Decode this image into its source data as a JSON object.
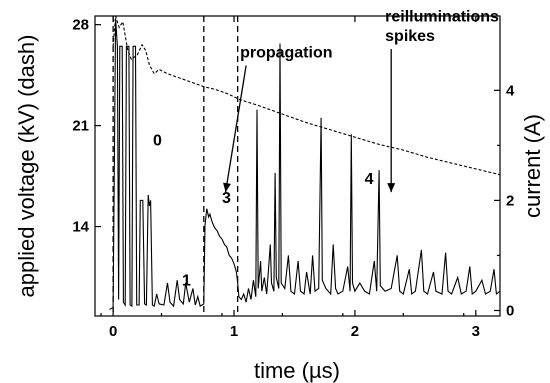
{
  "chart_data": {
    "type": "line",
    "xlabel": "time (µs)",
    "ylabel_left": "applied voltage (kV) (dash)",
    "ylabel_right": "current (A)",
    "xlim": [
      -0.15,
      3.2
    ],
    "ylim_left": [
      7.8,
      28.6
    ],
    "ylim_right": [
      -0.1,
      5.35
    ],
    "x_ticks": [
      0,
      1,
      2,
      3
    ],
    "y_left_ticks": [
      14,
      21,
      28
    ],
    "y_right_ticks": [
      0,
      2,
      4
    ],
    "grid": false,
    "markers": [
      {
        "name": "start",
        "x": 0.0
      },
      {
        "name": "left-boundary",
        "x": 0.75
      },
      {
        "name": "right-boundary",
        "x": 1.03
      }
    ],
    "annotations": [
      {
        "text": "0",
        "x": 0.33,
        "y_current": 3.0
      },
      {
        "text": "1",
        "x": 0.57,
        "y_current": 0.45
      },
      {
        "text": "3",
        "x": 0.9,
        "y_current": 1.95
      },
      {
        "text": "4",
        "x": 2.08,
        "y_current": 2.3
      },
      {
        "text": "propagation",
        "x": 1.05,
        "y_current": 4.6
      },
      {
        "text": "reilluminations",
        "x": 2.25,
        "y_current": 5.25
      },
      {
        "text": "spikes",
        "x": 2.25,
        "y_current": 4.9
      }
    ],
    "arrows": [
      {
        "from": [
          1.1,
          4.45
        ],
        "to": [
          0.93,
          2.15
        ]
      },
      {
        "from": [
          2.3,
          4.75
        ],
        "to": [
          2.3,
          2.15
        ]
      }
    ],
    "series": [
      {
        "axis": "left",
        "style": "dash",
        "points": [
          [
            0.0,
            26.5
          ],
          [
            0.02,
            28.8
          ],
          [
            0.05,
            27.8
          ],
          [
            0.08,
            28.2
          ],
          [
            0.12,
            26.3
          ],
          [
            0.15,
            25.6
          ],
          [
            0.2,
            25.9
          ],
          [
            0.24,
            26.6
          ],
          [
            0.27,
            26.2
          ],
          [
            0.3,
            25.2
          ],
          [
            0.34,
            24.6
          ],
          [
            0.38,
            24.9
          ],
          [
            0.45,
            24.6
          ],
          [
            0.55,
            24.3
          ],
          [
            0.65,
            24.0
          ],
          [
            0.75,
            23.7
          ],
          [
            0.85,
            23.5
          ],
          [
            0.95,
            23.2
          ],
          [
            1.05,
            22.8
          ],
          [
            1.2,
            22.4
          ],
          [
            1.4,
            21.8
          ],
          [
            1.6,
            21.2
          ],
          [
            1.8,
            20.7
          ],
          [
            2.0,
            20.2
          ],
          [
            2.2,
            19.7
          ],
          [
            2.4,
            19.3
          ],
          [
            2.6,
            18.8
          ],
          [
            2.8,
            18.4
          ],
          [
            3.0,
            18.0
          ],
          [
            3.2,
            17.6
          ]
        ]
      },
      {
        "axis": "right",
        "style": "solid",
        "points": [
          [
            -0.03,
            0.02
          ],
          [
            0.0,
            0.05
          ],
          [
            0.02,
            5.3
          ],
          [
            0.035,
            4.8
          ],
          [
            0.045,
            0.2
          ],
          [
            0.055,
            4.8
          ],
          [
            0.075,
            4.8
          ],
          [
            0.085,
            0.15
          ],
          [
            0.1,
            0.1
          ],
          [
            0.11,
            4.8
          ],
          [
            0.13,
            4.8
          ],
          [
            0.14,
            0.1
          ],
          [
            0.155,
            0.08
          ],
          [
            0.165,
            4.8
          ],
          [
            0.185,
            4.8
          ],
          [
            0.195,
            0.1
          ],
          [
            0.215,
            0.1
          ],
          [
            0.225,
            2.0
          ],
          [
            0.245,
            2.0
          ],
          [
            0.26,
            0.12
          ],
          [
            0.275,
            0.1
          ],
          [
            0.29,
            2.1
          ],
          [
            0.3,
            1.9
          ],
          [
            0.31,
            2.0
          ],
          [
            0.325,
            0.1
          ],
          [
            0.34,
            0.08
          ],
          [
            0.36,
            0.3
          ],
          [
            0.38,
            0.12
          ],
          [
            0.42,
            0.1
          ],
          [
            0.45,
            0.5
          ],
          [
            0.47,
            0.15
          ],
          [
            0.5,
            0.08
          ],
          [
            0.53,
            0.55
          ],
          [
            0.55,
            0.2
          ],
          [
            0.58,
            0.12
          ],
          [
            0.6,
            0.5
          ],
          [
            0.63,
            0.15
          ],
          [
            0.66,
            0.4
          ],
          [
            0.68,
            0.1
          ],
          [
            0.7,
            0.25
          ],
          [
            0.72,
            0.08
          ],
          [
            0.75,
            0.12
          ],
          [
            0.76,
            1.55
          ],
          [
            0.775,
            1.85
          ],
          [
            0.79,
            1.7
          ],
          [
            0.8,
            1.75
          ],
          [
            0.82,
            1.6
          ],
          [
            0.84,
            1.5
          ],
          [
            0.86,
            1.45
          ],
          [
            0.88,
            1.35
          ],
          [
            0.9,
            1.3
          ],
          [
            0.92,
            1.2
          ],
          [
            0.94,
            1.15
          ],
          [
            0.96,
            1.0
          ],
          [
            0.98,
            0.95
          ],
          [
            1.0,
            0.85
          ],
          [
            1.02,
            0.7
          ],
          [
            1.03,
            0.5
          ],
          [
            1.04,
            0.25
          ],
          [
            1.06,
            0.2
          ],
          [
            1.08,
            0.3
          ],
          [
            1.1,
            0.15
          ],
          [
            1.12,
            0.4
          ],
          [
            1.14,
            0.2
          ],
          [
            1.16,
            0.55
          ],
          [
            1.18,
            0.25
          ],
          [
            1.19,
            3.65
          ],
          [
            1.2,
            0.4
          ],
          [
            1.22,
            0.9
          ],
          [
            1.23,
            0.35
          ],
          [
            1.25,
            0.6
          ],
          [
            1.27,
            0.3
          ],
          [
            1.3,
            1.2
          ],
          [
            1.31,
            0.5
          ],
          [
            1.33,
            0.35
          ],
          [
            1.34,
            2.5
          ],
          [
            1.35,
            0.6
          ],
          [
            1.37,
            0.4
          ],
          [
            1.38,
            4.85
          ],
          [
            1.39,
            0.5
          ],
          [
            1.42,
            0.4
          ],
          [
            1.45,
            1.0
          ],
          [
            1.47,
            0.35
          ],
          [
            1.5,
            0.3
          ],
          [
            1.53,
            0.9
          ],
          [
            1.55,
            0.35
          ],
          [
            1.58,
            0.3
          ],
          [
            1.6,
            0.7
          ],
          [
            1.63,
            0.3
          ],
          [
            1.65,
            1.0
          ],
          [
            1.67,
            0.35
          ],
          [
            1.7,
            0.4
          ],
          [
            1.72,
            3.5
          ],
          [
            1.73,
            0.55
          ],
          [
            1.76,
            0.4
          ],
          [
            1.8,
            0.3
          ],
          [
            1.82,
            1.2
          ],
          [
            1.84,
            0.4
          ],
          [
            1.86,
            0.3
          ],
          [
            1.9,
            0.35
          ],
          [
            1.94,
            0.8
          ],
          [
            1.96,
            0.35
          ],
          [
            1.97,
            3.2
          ],
          [
            1.98,
            0.5
          ],
          [
            2.0,
            0.35
          ],
          [
            2.04,
            0.5
          ],
          [
            2.08,
            0.35
          ],
          [
            2.12,
            0.3
          ],
          [
            2.16,
            0.9
          ],
          [
            2.18,
            0.35
          ],
          [
            2.2,
            2.55
          ],
          [
            2.21,
            0.45
          ],
          [
            2.25,
            0.35
          ],
          [
            2.3,
            0.4
          ],
          [
            2.35,
            1.0
          ],
          [
            2.37,
            0.35
          ],
          [
            2.4,
            0.3
          ],
          [
            2.45,
            0.75
          ],
          [
            2.47,
            0.3
          ],
          [
            2.5,
            0.35
          ],
          [
            2.55,
            1.1
          ],
          [
            2.57,
            0.35
          ],
          [
            2.6,
            0.3
          ],
          [
            2.65,
            0.7
          ],
          [
            2.67,
            0.35
          ],
          [
            2.72,
            0.3
          ],
          [
            2.75,
            1.05
          ],
          [
            2.77,
            0.35
          ],
          [
            2.8,
            0.3
          ],
          [
            2.85,
            0.6
          ],
          [
            2.88,
            0.3
          ],
          [
            2.92,
            0.35
          ],
          [
            2.95,
            0.8
          ],
          [
            2.97,
            0.3
          ],
          [
            3.0,
            0.35
          ],
          [
            3.05,
            0.55
          ],
          [
            3.08,
            0.3
          ],
          [
            3.12,
            0.35
          ],
          [
            3.15,
            0.75
          ],
          [
            3.17,
            0.3
          ],
          [
            3.2,
            0.35
          ]
        ]
      }
    ]
  }
}
